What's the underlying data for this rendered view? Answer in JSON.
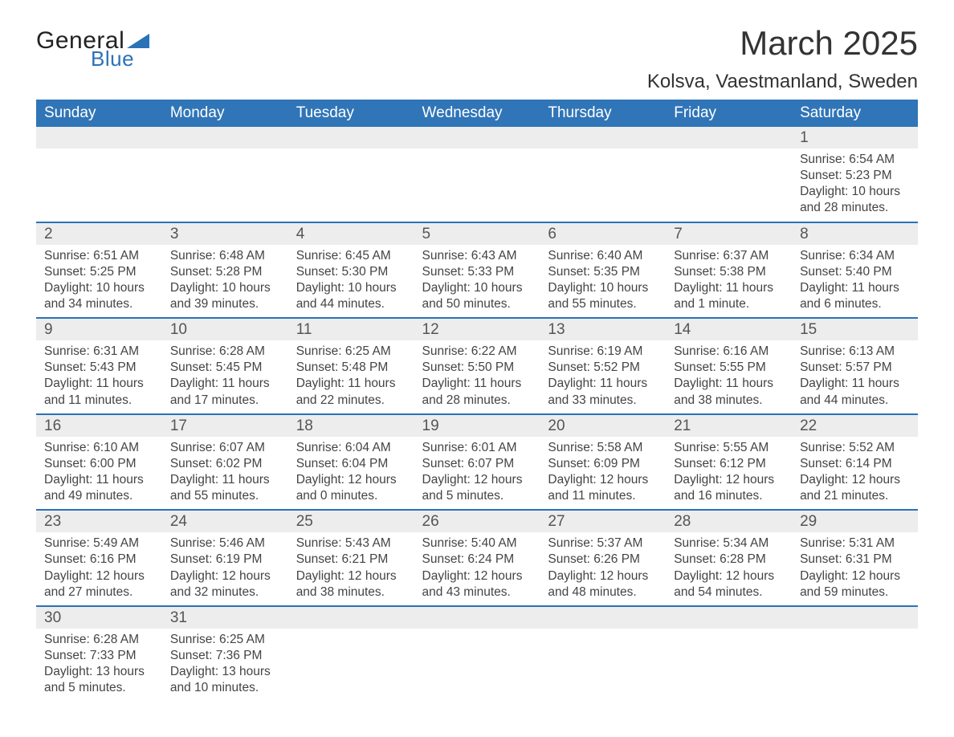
{
  "logo": {
    "text1": "General",
    "text2": "Blue",
    "triangle_color": "#2b72b8"
  },
  "title": "March 2025",
  "location": "Kolsva, Vaestmanland, Sweden",
  "day_labels": [
    "Sunday",
    "Monday",
    "Tuesday",
    "Wednesday",
    "Thursday",
    "Friday",
    "Saturday"
  ],
  "colors": {
    "header_bg": "#3075b7",
    "header_text": "#ffffff",
    "daynum_bg": "#ededed",
    "row_divider": "#2b72b8",
    "body_text": "#444444"
  },
  "weeks": [
    [
      {
        "n": "",
        "sr": "",
        "ss": "",
        "dl": ""
      },
      {
        "n": "",
        "sr": "",
        "ss": "",
        "dl": ""
      },
      {
        "n": "",
        "sr": "",
        "ss": "",
        "dl": ""
      },
      {
        "n": "",
        "sr": "",
        "ss": "",
        "dl": ""
      },
      {
        "n": "",
        "sr": "",
        "ss": "",
        "dl": ""
      },
      {
        "n": "",
        "sr": "",
        "ss": "",
        "dl": ""
      },
      {
        "n": "1",
        "sr": "Sunrise: 6:54 AM",
        "ss": "Sunset: 5:23 PM",
        "dl": "Daylight: 10 hours and 28 minutes."
      }
    ],
    [
      {
        "n": "2",
        "sr": "Sunrise: 6:51 AM",
        "ss": "Sunset: 5:25 PM",
        "dl": "Daylight: 10 hours and 34 minutes."
      },
      {
        "n": "3",
        "sr": "Sunrise: 6:48 AM",
        "ss": "Sunset: 5:28 PM",
        "dl": "Daylight: 10 hours and 39 minutes."
      },
      {
        "n": "4",
        "sr": "Sunrise: 6:45 AM",
        "ss": "Sunset: 5:30 PM",
        "dl": "Daylight: 10 hours and 44 minutes."
      },
      {
        "n": "5",
        "sr": "Sunrise: 6:43 AM",
        "ss": "Sunset: 5:33 PM",
        "dl": "Daylight: 10 hours and 50 minutes."
      },
      {
        "n": "6",
        "sr": "Sunrise: 6:40 AM",
        "ss": "Sunset: 5:35 PM",
        "dl": "Daylight: 10 hours and 55 minutes."
      },
      {
        "n": "7",
        "sr": "Sunrise: 6:37 AM",
        "ss": "Sunset: 5:38 PM",
        "dl": "Daylight: 11 hours and 1 minute."
      },
      {
        "n": "8",
        "sr": "Sunrise: 6:34 AM",
        "ss": "Sunset: 5:40 PM",
        "dl": "Daylight: 11 hours and 6 minutes."
      }
    ],
    [
      {
        "n": "9",
        "sr": "Sunrise: 6:31 AM",
        "ss": "Sunset: 5:43 PM",
        "dl": "Daylight: 11 hours and 11 minutes."
      },
      {
        "n": "10",
        "sr": "Sunrise: 6:28 AM",
        "ss": "Sunset: 5:45 PM",
        "dl": "Daylight: 11 hours and 17 minutes."
      },
      {
        "n": "11",
        "sr": "Sunrise: 6:25 AM",
        "ss": "Sunset: 5:48 PM",
        "dl": "Daylight: 11 hours and 22 minutes."
      },
      {
        "n": "12",
        "sr": "Sunrise: 6:22 AM",
        "ss": "Sunset: 5:50 PM",
        "dl": "Daylight: 11 hours and 28 minutes."
      },
      {
        "n": "13",
        "sr": "Sunrise: 6:19 AM",
        "ss": "Sunset: 5:52 PM",
        "dl": "Daylight: 11 hours and 33 minutes."
      },
      {
        "n": "14",
        "sr": "Sunrise: 6:16 AM",
        "ss": "Sunset: 5:55 PM",
        "dl": "Daylight: 11 hours and 38 minutes."
      },
      {
        "n": "15",
        "sr": "Sunrise: 6:13 AM",
        "ss": "Sunset: 5:57 PM",
        "dl": "Daylight: 11 hours and 44 minutes."
      }
    ],
    [
      {
        "n": "16",
        "sr": "Sunrise: 6:10 AM",
        "ss": "Sunset: 6:00 PM",
        "dl": "Daylight: 11 hours and 49 minutes."
      },
      {
        "n": "17",
        "sr": "Sunrise: 6:07 AM",
        "ss": "Sunset: 6:02 PM",
        "dl": "Daylight: 11 hours and 55 minutes."
      },
      {
        "n": "18",
        "sr": "Sunrise: 6:04 AM",
        "ss": "Sunset: 6:04 PM",
        "dl": "Daylight: 12 hours and 0 minutes."
      },
      {
        "n": "19",
        "sr": "Sunrise: 6:01 AM",
        "ss": "Sunset: 6:07 PM",
        "dl": "Daylight: 12 hours and 5 minutes."
      },
      {
        "n": "20",
        "sr": "Sunrise: 5:58 AM",
        "ss": "Sunset: 6:09 PM",
        "dl": "Daylight: 12 hours and 11 minutes."
      },
      {
        "n": "21",
        "sr": "Sunrise: 5:55 AM",
        "ss": "Sunset: 6:12 PM",
        "dl": "Daylight: 12 hours and 16 minutes."
      },
      {
        "n": "22",
        "sr": "Sunrise: 5:52 AM",
        "ss": "Sunset: 6:14 PM",
        "dl": "Daylight: 12 hours and 21 minutes."
      }
    ],
    [
      {
        "n": "23",
        "sr": "Sunrise: 5:49 AM",
        "ss": "Sunset: 6:16 PM",
        "dl": "Daylight: 12 hours and 27 minutes."
      },
      {
        "n": "24",
        "sr": "Sunrise: 5:46 AM",
        "ss": "Sunset: 6:19 PM",
        "dl": "Daylight: 12 hours and 32 minutes."
      },
      {
        "n": "25",
        "sr": "Sunrise: 5:43 AM",
        "ss": "Sunset: 6:21 PM",
        "dl": "Daylight: 12 hours and 38 minutes."
      },
      {
        "n": "26",
        "sr": "Sunrise: 5:40 AM",
        "ss": "Sunset: 6:24 PM",
        "dl": "Daylight: 12 hours and 43 minutes."
      },
      {
        "n": "27",
        "sr": "Sunrise: 5:37 AM",
        "ss": "Sunset: 6:26 PM",
        "dl": "Daylight: 12 hours and 48 minutes."
      },
      {
        "n": "28",
        "sr": "Sunrise: 5:34 AM",
        "ss": "Sunset: 6:28 PM",
        "dl": "Daylight: 12 hours and 54 minutes."
      },
      {
        "n": "29",
        "sr": "Sunrise: 5:31 AM",
        "ss": "Sunset: 6:31 PM",
        "dl": "Daylight: 12 hours and 59 minutes."
      }
    ],
    [
      {
        "n": "30",
        "sr": "Sunrise: 6:28 AM",
        "ss": "Sunset: 7:33 PM",
        "dl": "Daylight: 13 hours and 5 minutes."
      },
      {
        "n": "31",
        "sr": "Sunrise: 6:25 AM",
        "ss": "Sunset: 7:36 PM",
        "dl": "Daylight: 13 hours and 10 minutes."
      },
      {
        "n": "",
        "sr": "",
        "ss": "",
        "dl": ""
      },
      {
        "n": "",
        "sr": "",
        "ss": "",
        "dl": ""
      },
      {
        "n": "",
        "sr": "",
        "ss": "",
        "dl": ""
      },
      {
        "n": "",
        "sr": "",
        "ss": "",
        "dl": ""
      },
      {
        "n": "",
        "sr": "",
        "ss": "",
        "dl": ""
      }
    ]
  ]
}
